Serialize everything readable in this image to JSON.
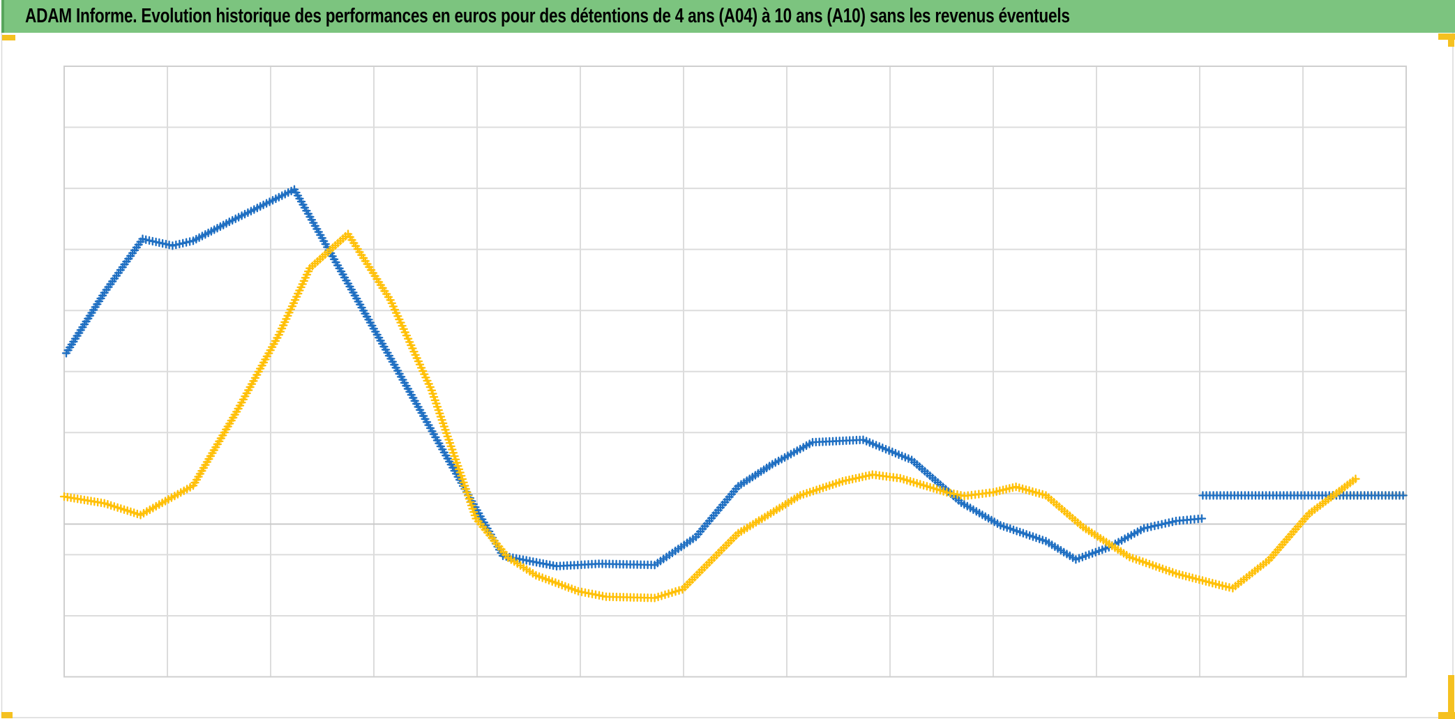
{
  "header": {
    "title": "ADAM Informe. Evolution historique des performances en euros pour des détentions de 4 ans (A04) à 10 ans (A10) sans les revenus éventuels",
    "bg_color": "#7CC47F",
    "edge_color": "#58A55C",
    "text_color": "#000000"
  },
  "colors": {
    "series_blue": "#1F6FC2",
    "series_yellow": "#FFC008",
    "gridline": "#DCDCDC",
    "plot_border": "#CFCFCF",
    "axis_line": "#C9C9C9",
    "chart_outer_border": "#D9D9D9",
    "selection_handle": "#F5C120",
    "background": "#FFFFFF"
  },
  "chart_data": {
    "type": "line",
    "title": "ADAM Informe. Evolution historique des performances en euros pour des détentions de 4 ans (A04) à 10 ans (A10) sans les revenus éventuels",
    "xlabel": "",
    "ylabel": "",
    "axes": {
      "x_tick_labels_visible": false,
      "y_tick_labels_visible": false,
      "x_gridline_columns": 13,
      "y_gridline_rows": 10,
      "horizontal_axis_line_offset_rows_above_plot_bottom": 2.5,
      "grid_on": true
    },
    "legend": {
      "visible": false
    },
    "marker_style": "plus",
    "value_units_note": "Axes are unlabeled in the image. Values below are in gridline units: x = gridline column (0–13 across the plot), y = gridline rows above the horizontal axis line (negative = below it).",
    "series": [
      {
        "name": "series_blue",
        "color_key": "series_blue",
        "segments": [
          [
            [
              0.02,
              2.8
            ],
            [
              0.39,
              3.79
            ],
            [
              0.76,
              4.67
            ],
            [
              1.05,
              4.56
            ],
            [
              1.25,
              4.64
            ],
            [
              1.6,
              4.95
            ],
            [
              2.23,
              5.48
            ],
            [
              2.75,
              3.94
            ],
            [
              3.43,
              1.92
            ],
            [
              4.25,
              -0.52
            ],
            [
              4.77,
              -0.69
            ],
            [
              5.18,
              -0.65
            ],
            [
              5.72,
              -0.67
            ],
            [
              6.12,
              -0.21
            ],
            [
              6.53,
              0.62
            ],
            [
              6.86,
              0.98
            ],
            [
              7.25,
              1.34
            ],
            [
              7.74,
              1.38
            ],
            [
              8.21,
              1.05
            ],
            [
              8.69,
              0.35
            ],
            [
              9.07,
              -0.02
            ],
            [
              9.51,
              -0.28
            ],
            [
              9.8,
              -0.58
            ],
            [
              10.12,
              -0.38
            ],
            [
              10.46,
              -0.07
            ],
            [
              10.77,
              0.05
            ],
            [
              11.02,
              0.09
            ]
          ],
          [
            [
              11.03,
              0.47
            ],
            [
              12.97,
              0.47
            ]
          ]
        ]
      },
      {
        "name": "series_yellow",
        "color_key": "series_yellow",
        "segments": [
          [
            [
              12.29,
              0.47
            ],
            [
              12.97,
              0.47
            ]
          ],
          [
            [
              0.0,
              0.45
            ],
            [
              0.39,
              0.34
            ],
            [
              0.74,
              0.15
            ],
            [
              1.25,
              0.63
            ],
            [
              1.67,
              1.84
            ],
            [
              2.08,
              3.1
            ],
            [
              2.38,
              4.19
            ],
            [
              2.75,
              4.75
            ],
            [
              3.16,
              3.67
            ],
            [
              3.56,
              2.19
            ],
            [
              3.99,
              0.09
            ],
            [
              4.3,
              -0.55
            ],
            [
              4.57,
              -0.84
            ],
            [
              4.98,
              -1.1
            ],
            [
              5.25,
              -1.19
            ],
            [
              5.72,
              -1.21
            ],
            [
              5.99,
              -1.07
            ],
            [
              6.53,
              -0.15
            ],
            [
              7.13,
              0.47
            ],
            [
              7.54,
              0.7
            ],
            [
              7.83,
              0.81
            ],
            [
              8.1,
              0.75
            ],
            [
              8.55,
              0.52
            ],
            [
              8.72,
              0.46
            ],
            [
              9.0,
              0.52
            ],
            [
              9.22,
              0.61
            ],
            [
              9.51,
              0.47
            ],
            [
              9.87,
              -0.05
            ],
            [
              10.32,
              -0.54
            ],
            [
              10.77,
              -0.81
            ],
            [
              11.22,
              -1.01
            ],
            [
              11.32,
              -1.05
            ],
            [
              11.67,
              -0.59
            ],
            [
              12.06,
              0.17
            ],
            [
              12.51,
              0.74
            ]
          ]
        ]
      }
    ]
  }
}
